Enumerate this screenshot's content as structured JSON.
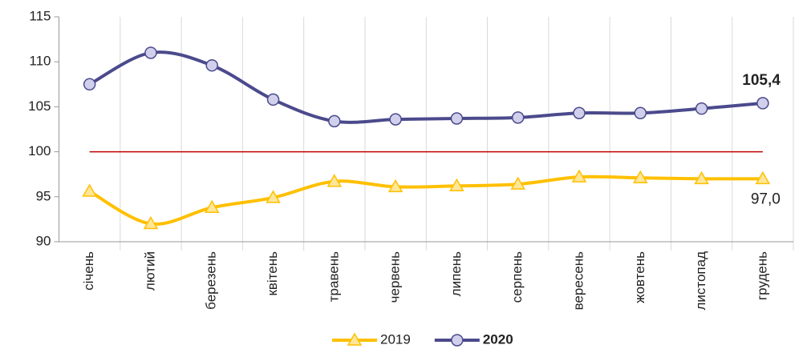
{
  "chart_data": {
    "type": "line",
    "categories": [
      "січень",
      "лютий",
      "березень",
      "квітень",
      "травень",
      "червень",
      "липень",
      "серпень",
      "вересень",
      "жовтень",
      "листопад",
      "грудень"
    ],
    "series": [
      {
        "name": "2019",
        "color": "#ffc000",
        "marker": "triangle",
        "bold": false,
        "values": [
          95.6,
          92.0,
          93.8,
          94.9,
          96.7,
          96.1,
          96.2,
          96.4,
          97.2,
          97.1,
          97.0,
          97.0
        ],
        "value_labels": [
          null,
          null,
          null,
          null,
          null,
          null,
          null,
          null,
          null,
          null,
          null,
          "97,0"
        ]
      },
      {
        "name": "2020",
        "color": "#4b4a8c",
        "marker": "circle",
        "bold": true,
        "values": [
          107.5,
          111.0,
          109.6,
          105.8,
          103.4,
          103.6,
          103.7,
          103.8,
          104.3,
          104.3,
          104.8,
          105.4
        ],
        "value_labels": [
          null,
          null,
          null,
          null,
          null,
          null,
          null,
          null,
          null,
          null,
          null,
          "105,4"
        ]
      }
    ],
    "reference_line": {
      "value": 100,
      "color": "#c00000"
    },
    "ylim": [
      90,
      115
    ],
    "yticks": [
      90,
      95,
      100,
      105,
      110,
      115
    ],
    "smooth": true,
    "legend": "bottom"
  }
}
